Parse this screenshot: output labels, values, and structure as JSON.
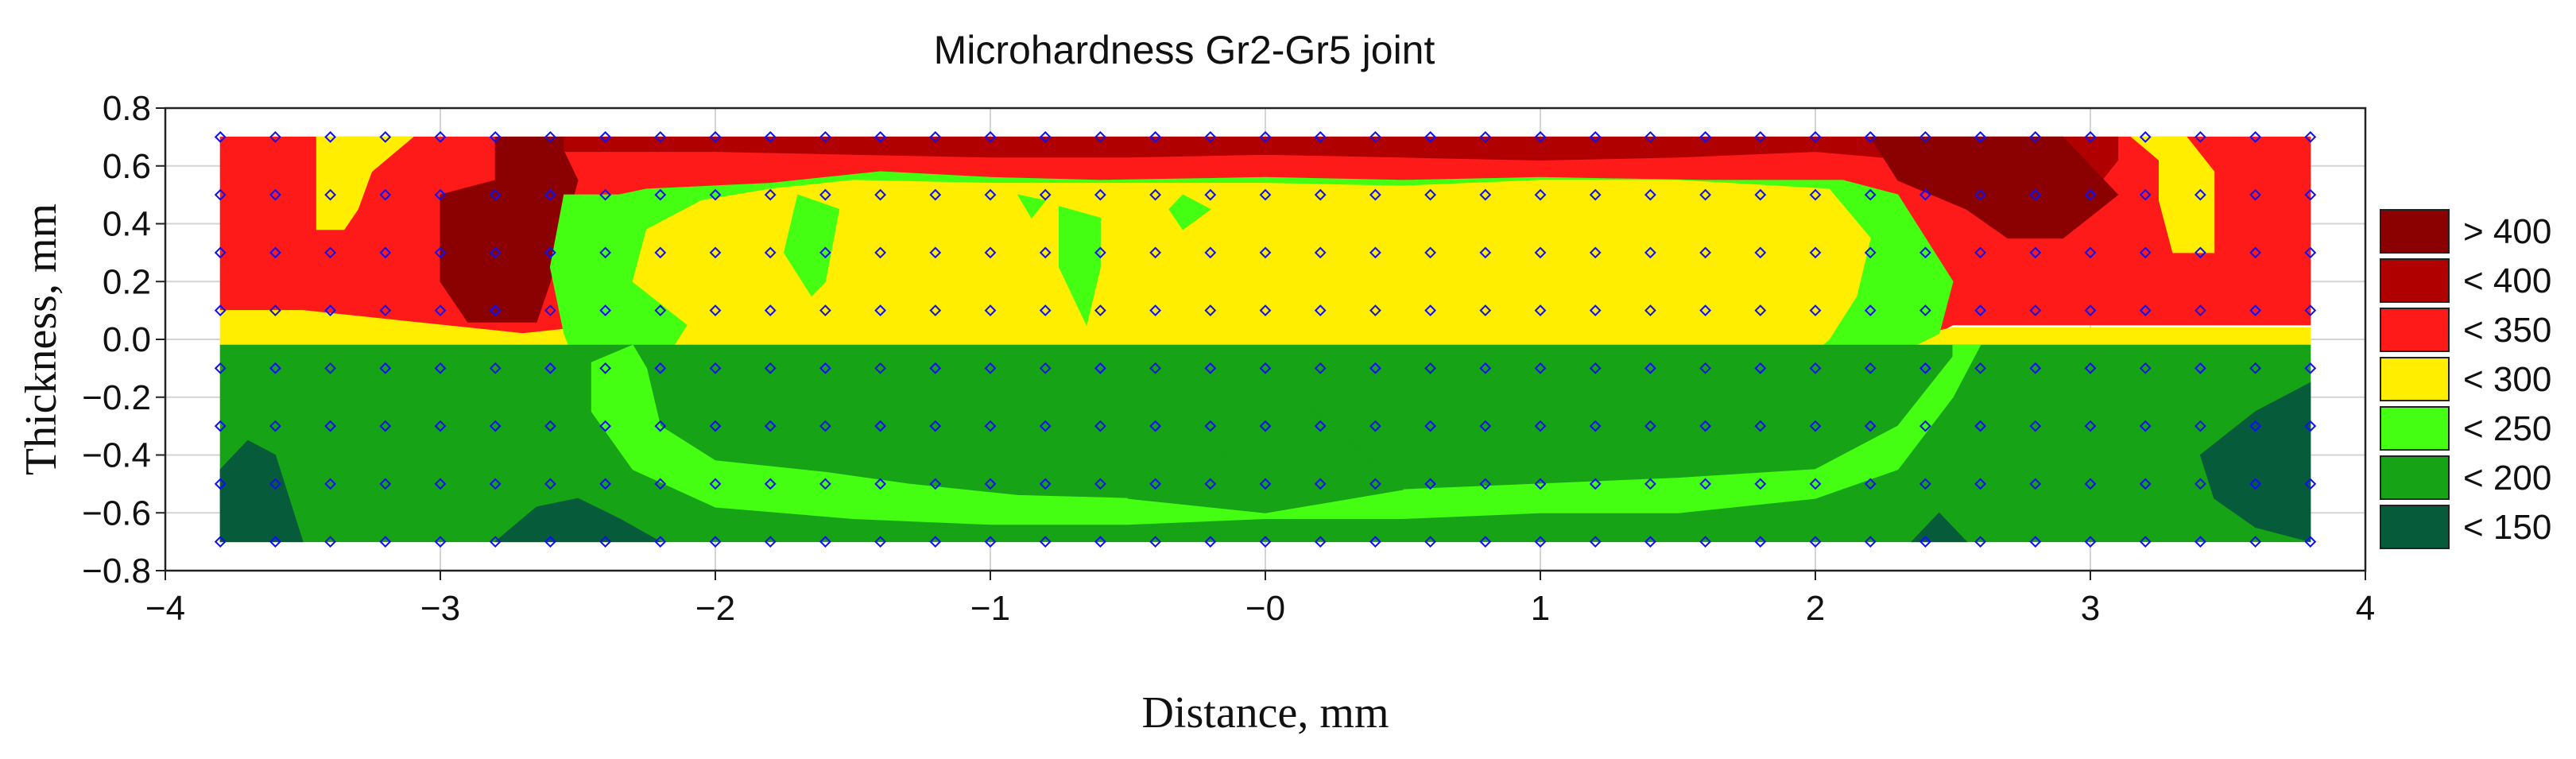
{
  "chart_data": {
    "type": "contour",
    "title": "Microhardness Gr2-Gr5 joint",
    "xlabel": "Distance, mm",
    "ylabel": "Thickness, mm",
    "xlim": [
      -4,
      4
    ],
    "ylim": [
      -0.8,
      0.8
    ],
    "x_ticks": [
      -4,
      -3,
      -2,
      -1,
      0,
      1,
      2,
      3,
      4
    ],
    "x_tick_labels": [
      "−4",
      "−3",
      "−2",
      "−1",
      "−0",
      "1",
      "2",
      "3",
      "4"
    ],
    "y_ticks": [
      0.8,
      0.6,
      0.4,
      0.2,
      0.0,
      -0.2,
      -0.4,
      -0.6,
      -0.8
    ],
    "y_tick_labels": [
      "0.8",
      "0.6",
      "0.4",
      "0.2",
      "0.0",
      "−0.2",
      "−0.4",
      "−0.6",
      "−0.8"
    ],
    "grid": true,
    "measurement_grid": {
      "x_start": -3.8,
      "x_end": 3.8,
      "x_step": 0.2,
      "y_values": [
        0.7,
        0.5,
        0.3,
        0.1,
        -0.1,
        -0.3,
        -0.5,
        -0.7
      ],
      "marker": "diamond",
      "marker_color": "#1010ee"
    },
    "levels": [
      {
        "label": "> 400",
        "color": "#8b0000"
      },
      {
        "label": "< 400",
        "color": "#b00000"
      },
      {
        "label": "< 350",
        "color": "#ff1a1a"
      },
      {
        "label": "< 300",
        "color": "#ffee00"
      },
      {
        "label": "< 250",
        "color": "#44ff11"
      },
      {
        "label": "< 200",
        "color": "#16a316"
      },
      {
        "label": "< 150",
        "color": "#065c3a"
      }
    ],
    "regions": [
      {
        "level": 2,
        "points": [
          [
            -3.8,
            0.7
          ],
          [
            3.8,
            0.7
          ],
          [
            3.8,
            0.05
          ],
          [
            2.5,
            0.05
          ],
          [
            2.4,
            0.0
          ],
          [
            -2.6,
            0.0
          ],
          [
            -3.0,
            0.0
          ],
          [
            -3.8,
            0.1
          ]
        ]
      },
      {
        "level": 3,
        "points": [
          [
            -3.45,
            0.7
          ],
          [
            -3.1,
            0.7
          ],
          [
            -3.25,
            0.58
          ],
          [
            -3.3,
            0.45
          ],
          [
            -3.35,
            0.38
          ],
          [
            -3.45,
            0.38
          ]
        ]
      },
      {
        "level": 3,
        "points": [
          [
            -3.8,
            0.1
          ],
          [
            -3.5,
            0.1
          ],
          [
            -3.1,
            0.06
          ],
          [
            -2.7,
            0.02
          ],
          [
            -2.5,
            0.04
          ],
          [
            -2.4,
            0.02
          ],
          [
            2.4,
            0.02
          ],
          [
            2.5,
            0.04
          ],
          [
            3.8,
            0.04
          ],
          [
            3.8,
            -0.02
          ],
          [
            -3.8,
            -0.02
          ]
        ]
      },
      {
        "level": 3,
        "points": [
          [
            3.15,
            0.7
          ],
          [
            3.25,
            0.62
          ],
          [
            3.25,
            0.48
          ],
          [
            3.3,
            0.3
          ],
          [
            3.45,
            0.3
          ],
          [
            3.45,
            0.58
          ],
          [
            3.35,
            0.7
          ]
        ]
      },
      {
        "level": 0,
        "points": [
          [
            -2.8,
            0.7
          ],
          [
            -2.55,
            0.7
          ],
          [
            -2.55,
            0.65
          ],
          [
            -2.5,
            0.55
          ],
          [
            -2.6,
            0.2
          ],
          [
            -2.65,
            0.06
          ],
          [
            -2.9,
            0.06
          ],
          [
            -3.0,
            0.2
          ],
          [
            -3.0,
            0.5
          ],
          [
            -2.8,
            0.55
          ]
        ]
      },
      {
        "level": 1,
        "points": [
          [
            -2.55,
            0.7
          ],
          [
            3.1,
            0.7
          ],
          [
            3.1,
            0.62
          ],
          [
            3.0,
            0.5
          ],
          [
            2.6,
            0.6
          ],
          [
            2.0,
            0.65
          ],
          [
            1.5,
            0.63
          ],
          [
            1.0,
            0.62
          ],
          [
            0.5,
            0.63
          ],
          [
            0.0,
            0.64
          ],
          [
            -0.5,
            0.63
          ],
          [
            -1.0,
            0.63
          ],
          [
            -1.5,
            0.64
          ],
          [
            -2.0,
            0.65
          ],
          [
            -2.55,
            0.65
          ]
        ]
      },
      {
        "level": 0,
        "points": [
          [
            2.2,
            0.7
          ],
          [
            2.9,
            0.7
          ],
          [
            3.1,
            0.5
          ],
          [
            2.9,
            0.35
          ],
          [
            2.7,
            0.35
          ],
          [
            2.55,
            0.45
          ],
          [
            2.3,
            0.55
          ]
        ]
      },
      {
        "level": 4,
        "points": [
          [
            -2.55,
            0.5
          ],
          [
            -2.35,
            0.5
          ],
          [
            -2.25,
            0.52
          ],
          [
            -1.8,
            0.54
          ],
          [
            -1.4,
            0.58
          ],
          [
            -1.0,
            0.56
          ],
          [
            -0.6,
            0.55
          ],
          [
            0.0,
            0.56
          ],
          [
            0.5,
            0.55
          ],
          [
            1.0,
            0.56
          ],
          [
            1.6,
            0.55
          ],
          [
            2.1,
            0.55
          ],
          [
            2.3,
            0.5
          ],
          [
            2.5,
            0.2
          ],
          [
            2.45,
            0.02
          ],
          [
            2.3,
            -0.05
          ],
          [
            2.2,
            -0.15
          ],
          [
            2.0,
            -0.3
          ],
          [
            1.7,
            -0.38
          ],
          [
            1.2,
            -0.42
          ],
          [
            0.8,
            -0.46
          ],
          [
            0.3,
            -0.48
          ],
          [
            -0.3,
            -0.5
          ],
          [
            -0.8,
            -0.52
          ],
          [
            -1.3,
            -0.52
          ],
          [
            -1.8,
            -0.48
          ],
          [
            -2.2,
            -0.4
          ],
          [
            -2.4,
            -0.25
          ],
          [
            -2.5,
            -0.1
          ],
          [
            -2.55,
            0.02
          ],
          [
            -2.6,
            0.25
          ]
        ]
      },
      {
        "level": 3,
        "points": [
          [
            -2.25,
            0.38
          ],
          [
            -2.05,
            0.48
          ],
          [
            -1.8,
            0.52
          ],
          [
            -1.5,
            0.55
          ],
          [
            -1.0,
            0.54
          ],
          [
            -0.6,
            0.54
          ],
          [
            0.0,
            0.54
          ],
          [
            0.5,
            0.53
          ],
          [
            1.0,
            0.55
          ],
          [
            1.5,
            0.55
          ],
          [
            2.05,
            0.52
          ],
          [
            2.2,
            0.35
          ],
          [
            2.15,
            0.15
          ],
          [
            2.05,
            0.0
          ],
          [
            1.8,
            -0.2
          ],
          [
            1.6,
            -0.35
          ],
          [
            1.2,
            -0.4
          ],
          [
            0.8,
            -0.42
          ],
          [
            0.3,
            -0.38
          ],
          [
            0.0,
            -0.3
          ],
          [
            -0.25,
            -0.3
          ],
          [
            -0.6,
            -0.45
          ],
          [
            -1.0,
            -0.5
          ],
          [
            -1.5,
            -0.48
          ],
          [
            -1.9,
            -0.42
          ],
          [
            -2.2,
            -0.3
          ],
          [
            -2.2,
            -0.1
          ],
          [
            -2.1,
            0.05
          ],
          [
            -2.3,
            0.2
          ]
        ]
      },
      {
        "level": 4,
        "points": [
          [
            -1.7,
            0.5
          ],
          [
            -1.55,
            0.45
          ],
          [
            -1.6,
            0.2
          ],
          [
            -1.65,
            0.15
          ],
          [
            -1.75,
            0.3
          ]
        ]
      },
      {
        "level": 4,
        "points": [
          [
            -0.75,
            0.46
          ],
          [
            -0.6,
            0.42
          ],
          [
            -0.6,
            0.25
          ],
          [
            -0.65,
            0.05
          ],
          [
            -0.75,
            0.25
          ]
        ]
      },
      {
        "level": 4,
        "points": [
          [
            -0.3,
            0.5
          ],
          [
            -0.2,
            0.45
          ],
          [
            -0.3,
            0.38
          ],
          [
            -0.35,
            0.45
          ]
        ]
      },
      {
        "level": 4,
        "points": [
          [
            -0.9,
            0.5
          ],
          [
            -0.8,
            0.48
          ],
          [
            -0.85,
            0.42
          ]
        ]
      },
      {
        "level": 4,
        "points": [
          [
            -1.6,
            -0.05
          ],
          [
            -1.45,
            -0.1
          ],
          [
            -1.55,
            -0.2
          ],
          [
            -1.65,
            -0.12
          ]
        ]
      },
      {
        "level": 4,
        "points": [
          [
            -0.8,
            -0.1
          ],
          [
            -0.65,
            -0.1
          ],
          [
            -0.7,
            -0.3
          ],
          [
            -0.8,
            -0.25
          ]
        ]
      },
      {
        "level": 4,
        "points": [
          [
            1.95,
            -0.15
          ],
          [
            2.05,
            -0.15
          ],
          [
            2.0,
            -0.3
          ]
        ]
      },
      {
        "level": 5,
        "points": [
          [
            -3.8,
            -0.02
          ],
          [
            3.8,
            -0.02
          ],
          [
            3.8,
            -0.7
          ],
          [
            -3.8,
            -0.7
          ]
        ]
      },
      {
        "level": 4,
        "points": [
          [
            -2.45,
            -0.08
          ],
          [
            -2.3,
            -0.02
          ],
          [
            -2.25,
            -0.1
          ],
          [
            -2.2,
            -0.3
          ],
          [
            -2.0,
            -0.42
          ],
          [
            -1.6,
            -0.46
          ],
          [
            -1.3,
            -0.5
          ],
          [
            -0.9,
            -0.54
          ],
          [
            -0.5,
            -0.55
          ],
          [
            0.0,
            -0.5
          ],
          [
            0.5,
            -0.52
          ],
          [
            1.0,
            -0.5
          ],
          [
            1.5,
            -0.48
          ],
          [
            2.0,
            -0.45
          ],
          [
            2.3,
            -0.3
          ],
          [
            2.5,
            -0.06
          ],
          [
            2.5,
            -0.02
          ],
          [
            2.6,
            -0.02
          ],
          [
            2.5,
            -0.2
          ],
          [
            2.3,
            -0.45
          ],
          [
            2.0,
            -0.55
          ],
          [
            1.5,
            -0.6
          ],
          [
            1.0,
            -0.6
          ],
          [
            0.5,
            -0.62
          ],
          [
            0.0,
            -0.62
          ],
          [
            -0.5,
            -0.64
          ],
          [
            -1.0,
            -0.64
          ],
          [
            -1.5,
            -0.62
          ],
          [
            -2.0,
            -0.58
          ],
          [
            -2.3,
            -0.45
          ],
          [
            -2.45,
            -0.25
          ]
        ]
      },
      {
        "level": 5,
        "points": [
          [
            -0.5,
            -0.55
          ],
          [
            -0.2,
            -0.5
          ],
          [
            0.0,
            -0.1
          ],
          [
            0.3,
            -0.35
          ],
          [
            0.5,
            -0.52
          ],
          [
            0.0,
            -0.6
          ]
        ]
      },
      {
        "level": 6,
        "points": [
          [
            -3.8,
            -0.7
          ],
          [
            -3.5,
            -0.7
          ],
          [
            -3.55,
            -0.55
          ],
          [
            -3.6,
            -0.4
          ],
          [
            -3.7,
            -0.35
          ],
          [
            -3.8,
            -0.45
          ]
        ]
      },
      {
        "level": 6,
        "points": [
          [
            -2.8,
            -0.7
          ],
          [
            -2.2,
            -0.7
          ],
          [
            -2.35,
            -0.62
          ],
          [
            -2.5,
            -0.55
          ],
          [
            -2.65,
            -0.58
          ]
        ]
      },
      {
        "level": 6,
        "points": [
          [
            2.35,
            -0.7
          ],
          [
            2.55,
            -0.7
          ],
          [
            2.45,
            -0.6
          ]
        ]
      },
      {
        "level": 6,
        "points": [
          [
            3.4,
            -0.4
          ],
          [
            3.6,
            -0.25
          ],
          [
            3.8,
            -0.15
          ],
          [
            3.8,
            -0.7
          ],
          [
            3.6,
            -0.65
          ],
          [
            3.45,
            -0.55
          ]
        ]
      }
    ]
  }
}
